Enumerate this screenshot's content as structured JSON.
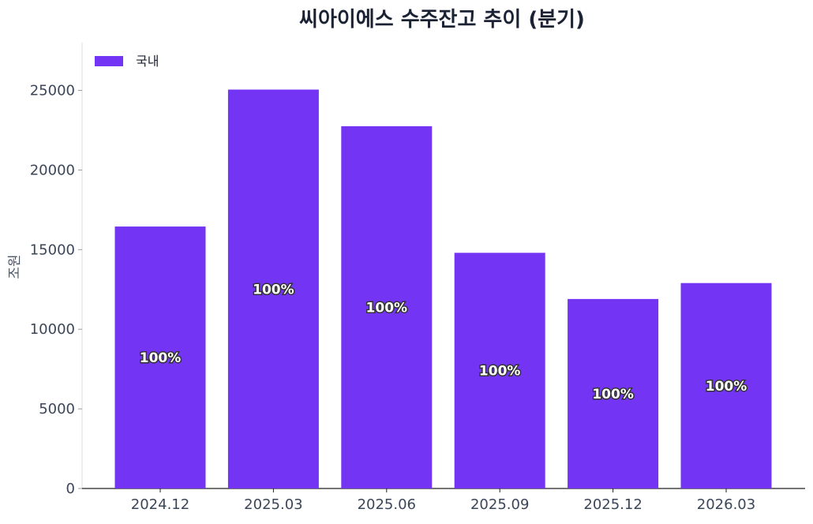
{
  "chart_data": {
    "type": "bar",
    "title": "씨아이에스 수주잔고 추이 (분기)",
    "xlabel": "",
    "ylabel": "조원",
    "categories": [
      "2024.12",
      "2025.03",
      "2025.06",
      "2025.09",
      "2025.12",
      "2026.03"
    ],
    "series": [
      {
        "name": "국내",
        "color": "#7434f3",
        "values": [
          16450,
          25050,
          22750,
          14800,
          11900,
          12900
        ],
        "labels": [
          "100%",
          "100%",
          "100%",
          "100%",
          "100%",
          "100%"
        ]
      }
    ],
    "ylim": [
      0,
      28000
    ],
    "yticks": [
      "0",
      "5000",
      "10000",
      "15000",
      "20000",
      "25000"
    ],
    "legend": "top-left",
    "grid": false
  }
}
